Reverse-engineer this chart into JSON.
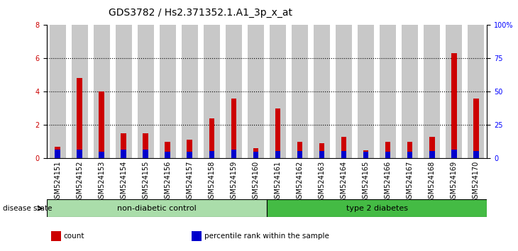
{
  "title": "GDS3782 / Hs2.371352.1.A1_3p_x_at",
  "samples": [
    "GSM524151",
    "GSM524152",
    "GSM524153",
    "GSM524154",
    "GSM524155",
    "GSM524156",
    "GSM524157",
    "GSM524158",
    "GSM524159",
    "GSM524160",
    "GSM524161",
    "GSM524162",
    "GSM524163",
    "GSM524164",
    "GSM524165",
    "GSM524166",
    "GSM524167",
    "GSM524168",
    "GSM524169",
    "GSM524170"
  ],
  "count_values": [
    0.7,
    4.8,
    4.0,
    1.5,
    1.5,
    1.0,
    1.1,
    2.4,
    3.6,
    0.6,
    3.0,
    1.0,
    0.9,
    1.3,
    0.45,
    1.0,
    1.0,
    1.3,
    6.3,
    3.6
  ],
  "percentile_values": [
    6.5,
    6.5,
    5.0,
    6.5,
    6.5,
    5.0,
    5.0,
    5.5,
    6.5,
    5.0,
    5.5,
    5.5,
    5.5,
    5.5,
    5.0,
    5.0,
    5.0,
    5.5,
    6.5,
    5.5
  ],
  "groups": [
    {
      "label": "non-diabetic control",
      "start": 0,
      "end": 9,
      "color": "#aaddaa"
    },
    {
      "label": "type 2 diabetes",
      "start": 10,
      "end": 19,
      "color": "#44bb44"
    }
  ],
  "ylim_left": [
    0,
    8
  ],
  "ylim_right": [
    0,
    100
  ],
  "yticks_left": [
    0,
    2,
    4,
    6,
    8
  ],
  "yticks_right": [
    0,
    25,
    50,
    75,
    100
  ],
  "ytick_labels_right": [
    "0",
    "25",
    "50",
    "75",
    "100%"
  ],
  "count_color": "#CC0000",
  "percentile_color": "#0000CC",
  "bar_bg_color": "#C8C8C8",
  "grid_lines": [
    2,
    4,
    6
  ],
  "legend_items": [
    {
      "label": "count",
      "color": "#CC0000"
    },
    {
      "label": "percentile rank within the sample",
      "color": "#0000CC"
    }
  ],
  "disease_state_label": "disease state",
  "title_fontsize": 10,
  "tick_fontsize": 7
}
